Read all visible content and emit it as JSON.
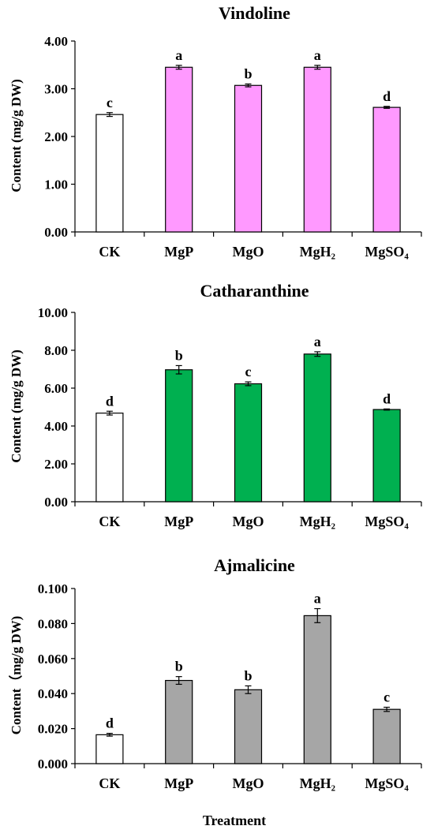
{
  "x_axis_label": "Treatment",
  "chart_data": [
    {
      "type": "bar",
      "title": "Vindoline",
      "ylabel": "Content (mg/g DW)",
      "categories": [
        "CK",
        "MgP",
        "MgO",
        "MgH₂",
        "MgSO₄"
      ],
      "values": [
        2.46,
        3.45,
        3.07,
        3.45,
        2.61
      ],
      "errors": [
        0.04,
        0.04,
        0.03,
        0.04,
        0.02
      ],
      "letters": [
        "c",
        "a",
        "b",
        "a",
        "d"
      ],
      "ylim": [
        0,
        4
      ],
      "yticks": [
        "0.00",
        "1.00",
        "2.00",
        "3.00",
        "4.00"
      ],
      "colors": [
        "#ffffff",
        "#ff99ff",
        "#ff99ff",
        "#ff99ff",
        "#ff99ff"
      ]
    },
    {
      "type": "bar",
      "title": "Catharanthine",
      "ylabel": "Content (mg/g DW)",
      "categories": [
        "CK",
        "MgP",
        "MgO",
        "MgH₂",
        "MgSO₄"
      ],
      "values": [
        4.68,
        6.97,
        6.23,
        7.8,
        4.87
      ],
      "errors": [
        0.1,
        0.22,
        0.1,
        0.12,
        0.03
      ],
      "letters": [
        "d",
        "b",
        "c",
        "a",
        "d"
      ],
      "ylim": [
        0,
        10
      ],
      "yticks": [
        "0.00",
        "2.00",
        "4.00",
        "6.00",
        "8.00",
        "10.00"
      ],
      "colors": [
        "#ffffff",
        "#00b050",
        "#00b050",
        "#00b050",
        "#00b050"
      ]
    },
    {
      "type": "bar",
      "title": "Ajmalicine",
      "ylabel": "Content（mg/g DW)",
      "categories": [
        "CK",
        "MgP",
        "MgO",
        "MgH₂",
        "MgSO₄"
      ],
      "values": [
        0.0165,
        0.0475,
        0.0422,
        0.0845,
        0.031
      ],
      "errors": [
        0.0008,
        0.0022,
        0.0022,
        0.004,
        0.0012
      ],
      "letters": [
        "d",
        "b",
        "b",
        "a",
        "c"
      ],
      "ylim": [
        0,
        0.1
      ],
      "yticks": [
        "0.000",
        "0.020",
        "0.040",
        "0.060",
        "0.080",
        "0.100"
      ],
      "colors": [
        "#ffffff",
        "#a6a6a6",
        "#a6a6a6",
        "#a6a6a6",
        "#a6a6a6"
      ]
    }
  ]
}
